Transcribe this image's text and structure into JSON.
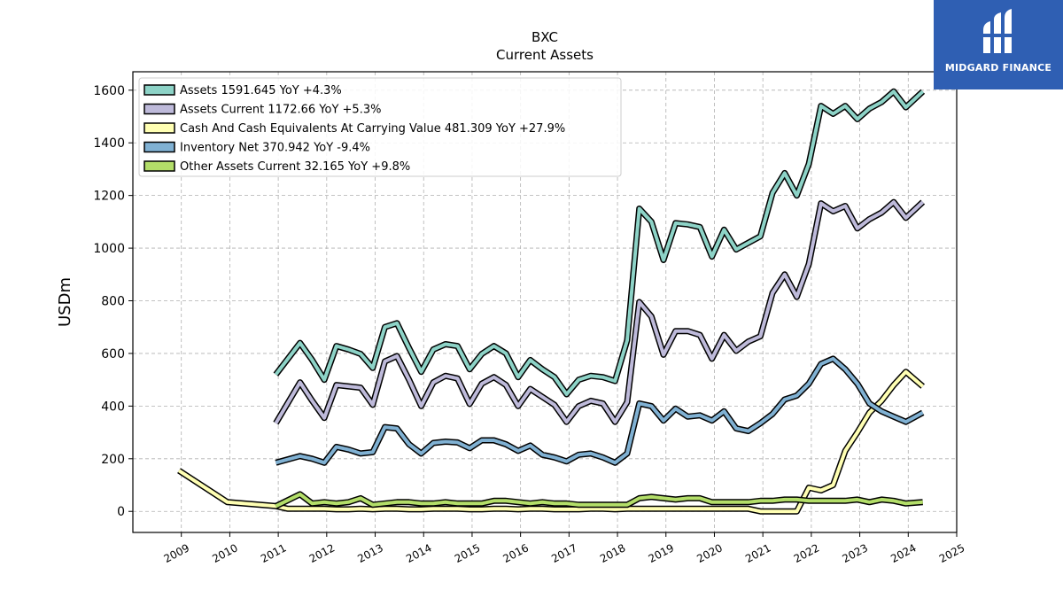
{
  "chart_data": {
    "type": "line",
    "title": "BXC",
    "subtitle": "Current  Assets",
    "ylabel": "USDm",
    "xlim": [
      2008.0,
      2025.0
    ],
    "ylim": [
      -80,
      1670
    ],
    "xticks": [
      2009,
      2010,
      2011,
      2012,
      2013,
      2014,
      2015,
      2016,
      2017,
      2018,
      2019,
      2020,
      2021,
      2022,
      2023,
      2024,
      2025
    ],
    "yticks": [
      0,
      200,
      400,
      600,
      800,
      1000,
      1200,
      1400,
      1600
    ],
    "grid": true,
    "legend_position": "top-left",
    "series": [
      {
        "name": "Assets  1591.645 YoY +4.3%",
        "color": "#8dd3c7",
        "points": [
          [
            2010.95,
            520
          ],
          [
            2011.45,
            640
          ],
          [
            2011.7,
            575
          ],
          [
            2011.95,
            500
          ],
          [
            2012.2,
            628
          ],
          [
            2012.45,
            615
          ],
          [
            2012.7,
            598
          ],
          [
            2012.95,
            545
          ],
          [
            2013.2,
            700
          ],
          [
            2013.45,
            715
          ],
          [
            2013.7,
            620
          ],
          [
            2013.95,
            530
          ],
          [
            2014.2,
            615
          ],
          [
            2014.45,
            635
          ],
          [
            2014.7,
            628
          ],
          [
            2014.95,
            540
          ],
          [
            2015.2,
            598
          ],
          [
            2015.45,
            628
          ],
          [
            2015.7,
            600
          ],
          [
            2015.95,
            510
          ],
          [
            2016.2,
            575
          ],
          [
            2016.45,
            540
          ],
          [
            2016.7,
            510
          ],
          [
            2016.95,
            445
          ],
          [
            2017.2,
            500
          ],
          [
            2017.45,
            515
          ],
          [
            2017.7,
            510
          ],
          [
            2017.95,
            495
          ],
          [
            2018.2,
            650
          ],
          [
            2018.45,
            1150
          ],
          [
            2018.7,
            1100
          ],
          [
            2018.95,
            955
          ],
          [
            2019.2,
            1095
          ],
          [
            2019.45,
            1090
          ],
          [
            2019.7,
            1080
          ],
          [
            2019.95,
            968
          ],
          [
            2020.2,
            1070
          ],
          [
            2020.45,
            995
          ],
          [
            2020.7,
            1020
          ],
          [
            2020.95,
            1045
          ],
          [
            2021.2,
            1210
          ],
          [
            2021.45,
            1285
          ],
          [
            2021.7,
            1200
          ],
          [
            2021.95,
            1320
          ],
          [
            2022.2,
            1540
          ],
          [
            2022.45,
            1510
          ],
          [
            2022.7,
            1540
          ],
          [
            2022.95,
            1490
          ],
          [
            2023.2,
            1530
          ],
          [
            2023.45,
            1555
          ],
          [
            2023.7,
            1595
          ],
          [
            2023.95,
            1535
          ],
          [
            2024.3,
            1595
          ]
        ]
      },
      {
        "name": "Assets Current  1172.66 YoY +5.3%",
        "color": "#bebada",
        "points": [
          [
            2010.95,
            335
          ],
          [
            2011.45,
            490
          ],
          [
            2011.7,
            420
          ],
          [
            2011.95,
            355
          ],
          [
            2012.2,
            480
          ],
          [
            2012.45,
            475
          ],
          [
            2012.7,
            470
          ],
          [
            2012.95,
            405
          ],
          [
            2013.2,
            570
          ],
          [
            2013.45,
            590
          ],
          [
            2013.7,
            500
          ],
          [
            2013.95,
            400
          ],
          [
            2014.2,
            490
          ],
          [
            2014.45,
            515
          ],
          [
            2014.7,
            505
          ],
          [
            2014.95,
            408
          ],
          [
            2015.2,
            485
          ],
          [
            2015.45,
            510
          ],
          [
            2015.7,
            480
          ],
          [
            2015.95,
            400
          ],
          [
            2016.2,
            465
          ],
          [
            2016.45,
            435
          ],
          [
            2016.7,
            405
          ],
          [
            2016.95,
            340
          ],
          [
            2017.2,
            400
          ],
          [
            2017.45,
            420
          ],
          [
            2017.7,
            410
          ],
          [
            2017.95,
            340
          ],
          [
            2018.2,
            415
          ],
          [
            2018.45,
            795
          ],
          [
            2018.7,
            740
          ],
          [
            2018.95,
            595
          ],
          [
            2019.2,
            685
          ],
          [
            2019.45,
            685
          ],
          [
            2019.7,
            670
          ],
          [
            2019.95,
            580
          ],
          [
            2020.2,
            670
          ],
          [
            2020.45,
            610
          ],
          [
            2020.7,
            645
          ],
          [
            2020.95,
            665
          ],
          [
            2021.2,
            830
          ],
          [
            2021.45,
            900
          ],
          [
            2021.7,
            815
          ],
          [
            2021.95,
            940
          ],
          [
            2022.2,
            1170
          ],
          [
            2022.45,
            1140
          ],
          [
            2022.7,
            1160
          ],
          [
            2022.95,
            1075
          ],
          [
            2023.2,
            1110
          ],
          [
            2023.45,
            1135
          ],
          [
            2023.7,
            1175
          ],
          [
            2023.95,
            1115
          ],
          [
            2024.3,
            1175
          ]
        ]
      },
      {
        "name": "Cash And Cash Equivalents At Carrying Value  481.309 YoY +27.9%",
        "color": "#ffffb3",
        "points": [
          [
            2008.95,
            155
          ],
          [
            2009.95,
            35
          ],
          [
            2010.95,
            20
          ],
          [
            2011.2,
            10
          ],
          [
            2011.45,
            10
          ],
          [
            2011.7,
            10
          ],
          [
            2011.95,
            10
          ],
          [
            2012.2,
            8
          ],
          [
            2012.45,
            8
          ],
          [
            2012.7,
            10
          ],
          [
            2012.95,
            8
          ],
          [
            2013.2,
            10
          ],
          [
            2013.45,
            10
          ],
          [
            2013.7,
            8
          ],
          [
            2013.95,
            8
          ],
          [
            2014.2,
            10
          ],
          [
            2014.45,
            10
          ],
          [
            2014.7,
            10
          ],
          [
            2014.95,
            8
          ],
          [
            2015.2,
            8
          ],
          [
            2015.45,
            10
          ],
          [
            2015.7,
            10
          ],
          [
            2015.95,
            8
          ],
          [
            2016.2,
            10
          ],
          [
            2016.45,
            10
          ],
          [
            2016.7,
            8
          ],
          [
            2016.95,
            8
          ],
          [
            2017.2,
            8
          ],
          [
            2017.45,
            10
          ],
          [
            2017.7,
            10
          ],
          [
            2017.95,
            8
          ],
          [
            2018.2,
            10
          ],
          [
            2018.45,
            10
          ],
          [
            2018.7,
            10
          ],
          [
            2018.95,
            10
          ],
          [
            2019.2,
            10
          ],
          [
            2019.45,
            10
          ],
          [
            2019.7,
            10
          ],
          [
            2019.95,
            10
          ],
          [
            2020.2,
            10
          ],
          [
            2020.45,
            10
          ],
          [
            2020.7,
            10
          ],
          [
            2020.95,
            0
          ],
          [
            2021.2,
            0
          ],
          [
            2021.45,
            0
          ],
          [
            2021.7,
            0
          ],
          [
            2021.95,
            90
          ],
          [
            2022.2,
            80
          ],
          [
            2022.45,
            100
          ],
          [
            2022.7,
            230
          ],
          [
            2022.95,
            300
          ],
          [
            2023.2,
            375
          ],
          [
            2023.45,
            420
          ],
          [
            2023.7,
            480
          ],
          [
            2023.95,
            530
          ],
          [
            2024.3,
            475
          ]
        ]
      },
      {
        "name": "Inventory Net  370.942 YoY -9.4%",
        "color": "#80b1d3",
        "points": [
          [
            2010.95,
            185
          ],
          [
            2011.45,
            210
          ],
          [
            2011.7,
            200
          ],
          [
            2011.95,
            185
          ],
          [
            2012.2,
            245
          ],
          [
            2012.45,
            235
          ],
          [
            2012.7,
            220
          ],
          [
            2012.95,
            225
          ],
          [
            2013.2,
            320
          ],
          [
            2013.45,
            315
          ],
          [
            2013.7,
            255
          ],
          [
            2013.95,
            220
          ],
          [
            2014.2,
            260
          ],
          [
            2014.45,
            265
          ],
          [
            2014.7,
            262
          ],
          [
            2014.95,
            240
          ],
          [
            2015.2,
            270
          ],
          [
            2015.45,
            270
          ],
          [
            2015.7,
            255
          ],
          [
            2015.95,
            230
          ],
          [
            2016.2,
            250
          ],
          [
            2016.45,
            215
          ],
          [
            2016.7,
            205
          ],
          [
            2016.95,
            190
          ],
          [
            2017.2,
            215
          ],
          [
            2017.45,
            220
          ],
          [
            2017.7,
            205
          ],
          [
            2017.95,
            185
          ],
          [
            2018.2,
            220
          ],
          [
            2018.45,
            410
          ],
          [
            2018.7,
            400
          ],
          [
            2018.95,
            345
          ],
          [
            2019.2,
            390
          ],
          [
            2019.45,
            360
          ],
          [
            2019.7,
            365
          ],
          [
            2019.95,
            345
          ],
          [
            2020.2,
            380
          ],
          [
            2020.45,
            315
          ],
          [
            2020.7,
            305
          ],
          [
            2020.95,
            335
          ],
          [
            2021.2,
            370
          ],
          [
            2021.45,
            425
          ],
          [
            2021.7,
            440
          ],
          [
            2021.95,
            485
          ],
          [
            2022.2,
            560
          ],
          [
            2022.45,
            580
          ],
          [
            2022.7,
            540
          ],
          [
            2022.95,
            485
          ],
          [
            2023.2,
            410
          ],
          [
            2023.45,
            380
          ],
          [
            2023.7,
            360
          ],
          [
            2023.95,
            340
          ],
          [
            2024.3,
            375
          ]
        ]
      },
      {
        "name": "Other Assets Current  32.165 YoY +9.8%",
        "color": "#b3de69",
        "points": [
          [
            2010.95,
            20
          ],
          [
            2011.45,
            65
          ],
          [
            2011.7,
            30
          ],
          [
            2011.95,
            35
          ],
          [
            2012.2,
            30
          ],
          [
            2012.45,
            35
          ],
          [
            2012.7,
            50
          ],
          [
            2012.95,
            25
          ],
          [
            2013.2,
            30
          ],
          [
            2013.45,
            35
          ],
          [
            2013.7,
            35
          ],
          [
            2013.95,
            30
          ],
          [
            2014.2,
            30
          ],
          [
            2014.45,
            35
          ],
          [
            2014.7,
            30
          ],
          [
            2014.95,
            30
          ],
          [
            2015.2,
            30
          ],
          [
            2015.45,
            40
          ],
          [
            2015.7,
            40
          ],
          [
            2015.95,
            35
          ],
          [
            2016.2,
            30
          ],
          [
            2016.45,
            35
          ],
          [
            2016.7,
            30
          ],
          [
            2016.95,
            30
          ],
          [
            2017.2,
            25
          ],
          [
            2017.45,
            25
          ],
          [
            2017.7,
            25
          ],
          [
            2017.95,
            25
          ],
          [
            2018.2,
            25
          ],
          [
            2018.45,
            50
          ],
          [
            2018.7,
            55
          ],
          [
            2018.95,
            50
          ],
          [
            2019.2,
            45
          ],
          [
            2019.45,
            50
          ],
          [
            2019.7,
            50
          ],
          [
            2019.95,
            35
          ],
          [
            2020.2,
            35
          ],
          [
            2020.45,
            35
          ],
          [
            2020.7,
            35
          ],
          [
            2020.95,
            40
          ],
          [
            2021.2,
            40
          ],
          [
            2021.45,
            45
          ],
          [
            2021.7,
            45
          ],
          [
            2021.95,
            40
          ],
          [
            2022.2,
            40
          ],
          [
            2022.45,
            40
          ],
          [
            2022.7,
            40
          ],
          [
            2022.95,
            45
          ],
          [
            2023.2,
            35
          ],
          [
            2023.45,
            45
          ],
          [
            2023.7,
            40
          ],
          [
            2023.95,
            30
          ],
          [
            2024.3,
            35
          ]
        ]
      }
    ]
  },
  "logo": {
    "text": "MIDGARD FINANCE",
    "background": "#2f5fb3"
  }
}
